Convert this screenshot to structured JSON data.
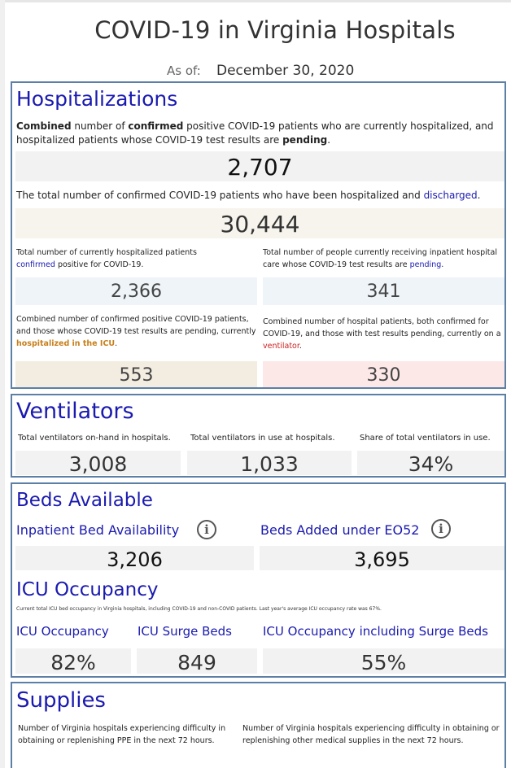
{
  "header": {
    "title": "COVID-19 in Virginia Hospitals",
    "as_of_label": "As of:",
    "as_of_date": "December 30, 2020"
  },
  "hosp": {
    "title": "Hospitalizations",
    "desc1": {
      "a": "Combined",
      "b": " number of ",
      "c": "confirmed",
      "d": " positive COVID-19 patients who are currently hospitalized, and hospitalized patients whose COVID-19 test results are ",
      "e": "pending",
      "f": "."
    },
    "current": "2,707",
    "desc2": {
      "a": "The total number of confirmed COVID-19 patients who have been hospitalized and ",
      "b": "discharged",
      "c": "."
    },
    "discharged": "30,444",
    "confirmed_desc": {
      "a": "Total number of currently hospitalized patients ",
      "b": "confirmed",
      "c": " positive for COVID-19."
    },
    "confirmed": "2,366",
    "pending_desc": {
      "a": "Total number of people currently receiving inpatient hospital care whose COVID-19 test results are ",
      "b": "pending",
      "c": "."
    },
    "pending": "341",
    "icu_desc": {
      "a": "Combined number of confirmed positive COVID-19 patients, and those whose COVID-19 test results are pending, currently ",
      "b": "hospitalized in the ICU",
      "c": "."
    },
    "icu": "553",
    "vent_desc": {
      "a": "Combined number of hospital patients, both confirmed for COVID-19, and those with test results pending, currently on a ",
      "b": "ventilator",
      "c": "."
    },
    "vent": "330"
  },
  "vents": {
    "title": "Ventilators",
    "onhand_label": "Total ventilators on-hand in hospitals.",
    "onhand": "3,008",
    "inuse_label": "Total ventilators in use at hospitals.",
    "inuse": "1,033",
    "share_label": "Share of total ventilators in use.",
    "share": "34%"
  },
  "beds": {
    "title": "Beds Available",
    "inpatient_label": "Inpatient Bed Availability",
    "inpatient": "3,206",
    "added_label": "Beds Added under EO52",
    "added": "3,695",
    "icu_title": "ICU Occupancy",
    "icu_desc": "Current total ICU bed occupancy in Virginia hospitals, including COVID-19 and non-COVID patients. Last year's average ICU occupancy rate was 67%.",
    "icu_occ_label": "ICU Occupancy",
    "icu_occ": "82%",
    "surge_label": "ICU Surge Beds",
    "surge": "849",
    "incl_label": "ICU Occupancy including Surge Beds",
    "incl": "55%",
    "info_glyph": "i"
  },
  "supplies": {
    "title": "Supplies",
    "ppe_desc": "Number of Virginia hospitals experiencing difficulty in obtaining or replenishing PPE in the next 72 hours.",
    "other_desc": "Number of Virginia hospitals experiencing difficulty in obtaining or replenishing other medical supplies in the next 72 hours."
  },
  "colors": {
    "blue_heading": "#1a1ab0",
    "panel_border": "#5b7fa6",
    "orange": "#c87f1a",
    "red": "#cc1f1f"
  }
}
